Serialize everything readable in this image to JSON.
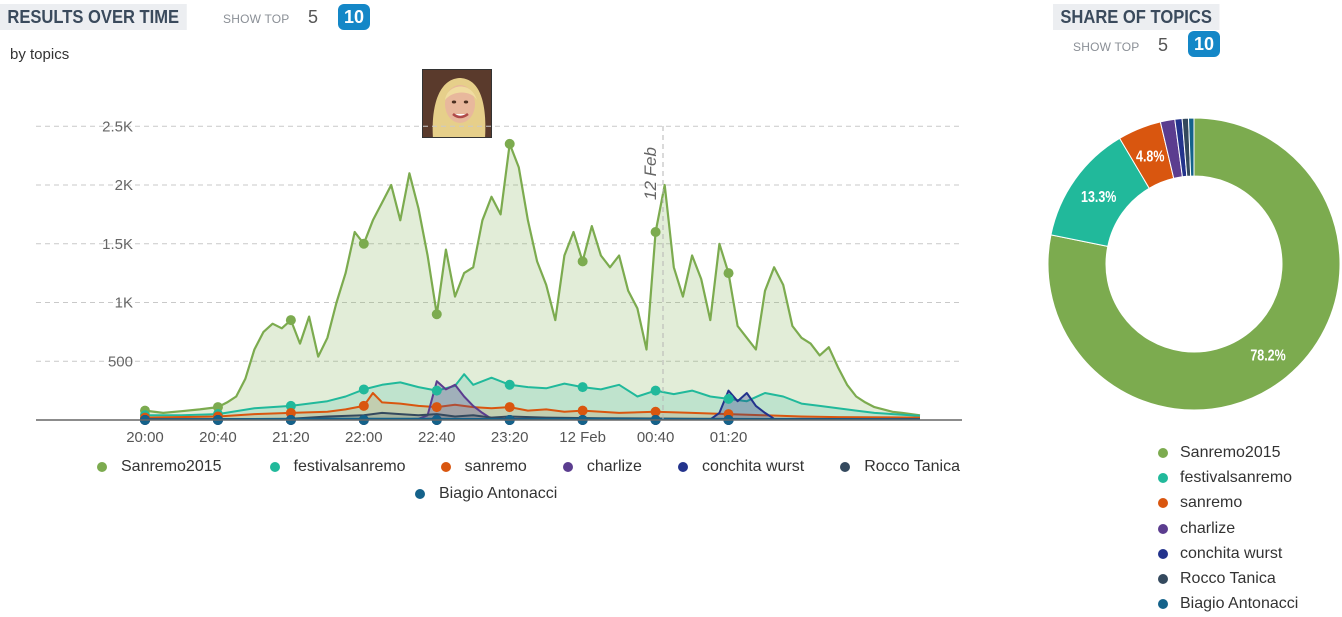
{
  "results": {
    "title": "RESULTS OVER TIME",
    "show_top_label": "SHOW TOP",
    "options": [
      "5",
      "10"
    ],
    "active_option": "10",
    "subtitle": "by topics",
    "event_label": "12 Feb"
  },
  "share": {
    "title": "SHARE OF TOPICS",
    "show_top_label": "SHOW TOP",
    "options": [
      "5",
      "10"
    ],
    "active_option": "10"
  },
  "chart_data": [
    {
      "type": "area",
      "title": "RESULTS OVER TIME",
      "subtitle": "by topics",
      "x_tick_labels": [
        "20:00",
        "20:40",
        "21:20",
        "22:00",
        "22:40",
        "23:20",
        "12 Feb",
        "00:40",
        "01:20"
      ],
      "y_tick_labels": [
        "500",
        "1K",
        "1.5K",
        "2K",
        "2.5K"
      ],
      "ylim": [
        0,
        2500
      ],
      "grid": true,
      "legend_position": "bottom",
      "series": [
        {
          "name": "Sanremo2015",
          "color": "#7cab4f",
          "points": [
            [
              0,
              80
            ],
            [
              10,
              60
            ],
            [
              20,
              75
            ],
            [
              30,
              90
            ],
            [
              40,
              110
            ],
            [
              45,
              150
            ],
            [
              50,
              200
            ],
            [
              55,
              350
            ],
            [
              60,
              600
            ],
            [
              65,
              750
            ],
            [
              70,
              820
            ],
            [
              75,
              780
            ],
            [
              80,
              850
            ],
            [
              85,
              650
            ],
            [
              90,
              880
            ],
            [
              95,
              540
            ],
            [
              100,
              700
            ],
            [
              105,
              1000
            ],
            [
              110,
              1250
            ],
            [
              115,
              1600
            ],
            [
              120,
              1500
            ],
            [
              125,
              1700
            ],
            [
              130,
              1850
            ],
            [
              135,
              2000
            ],
            [
              140,
              1700
            ],
            [
              145,
              2100
            ],
            [
              150,
              1800
            ],
            [
              155,
              1400
            ],
            [
              160,
              900
            ],
            [
              165,
              1450
            ],
            [
              170,
              1050
            ],
            [
              175,
              1250
            ],
            [
              180,
              1300
            ],
            [
              185,
              1700
            ],
            [
              190,
              1900
            ],
            [
              195,
              1750
            ],
            [
              200,
              2350
            ],
            [
              205,
              2150
            ],
            [
              210,
              1700
            ],
            [
              215,
              1350
            ],
            [
              220,
              1150
            ],
            [
              225,
              850
            ],
            [
              230,
              1400
            ],
            [
              235,
              1600
            ],
            [
              240,
              1350
            ],
            [
              245,
              1650
            ],
            [
              250,
              1400
            ],
            [
              255,
              1300
            ],
            [
              260,
              1400
            ],
            [
              265,
              1100
            ],
            [
              270,
              950
            ],
            [
              275,
              600
            ],
            [
              280,
              1600
            ],
            [
              285,
              2000
            ],
            [
              290,
              1300
            ],
            [
              295,
              1050
            ],
            [
              300,
              1400
            ],
            [
              305,
              1200
            ],
            [
              310,
              850
            ],
            [
              315,
              1500
            ],
            [
              320,
              1250
            ],
            [
              325,
              800
            ],
            [
              330,
              700
            ],
            [
              335,
              600
            ],
            [
              340,
              1100
            ],
            [
              345,
              1300
            ],
            [
              350,
              1150
            ],
            [
              355,
              800
            ],
            [
              360,
              700
            ],
            [
              365,
              650
            ],
            [
              370,
              550
            ],
            [
              375,
              620
            ],
            [
              380,
              450
            ],
            [
              385,
              300
            ],
            [
              390,
              200
            ],
            [
              395,
              150
            ],
            [
              400,
              110
            ],
            [
              405,
              90
            ],
            [
              410,
              70
            ],
            [
              415,
              60
            ],
            [
              420,
              50
            ],
            [
              425,
              40
            ]
          ]
        },
        {
          "name": "festivalsanremo",
          "color": "#21b99b",
          "points": [
            [
              0,
              40
            ],
            [
              20,
              40
            ],
            [
              40,
              50
            ],
            [
              60,
              100
            ],
            [
              80,
              120
            ],
            [
              100,
              160
            ],
            [
              110,
              200
            ],
            [
              120,
              260
            ],
            [
              130,
              300
            ],
            [
              140,
              320
            ],
            [
              150,
              280
            ],
            [
              160,
              250
            ],
            [
              170,
              290
            ],
            [
              175,
              390
            ],
            [
              180,
              300
            ],
            [
              190,
              360
            ],
            [
              200,
              300
            ],
            [
              210,
              280
            ],
            [
              220,
              270
            ],
            [
              230,
              310
            ],
            [
              240,
              280
            ],
            [
              250,
              260
            ],
            [
              260,
              300
            ],
            [
              270,
              200
            ],
            [
              280,
              250
            ],
            [
              290,
              220
            ],
            [
              300,
              250
            ],
            [
              310,
              200
            ],
            [
              320,
              180
            ],
            [
              330,
              160
            ],
            [
              340,
              230
            ],
            [
              350,
              200
            ],
            [
              360,
              140
            ],
            [
              370,
              120
            ],
            [
              380,
              100
            ],
            [
              390,
              80
            ],
            [
              400,
              60
            ],
            [
              420,
              40
            ],
            [
              425,
              35
            ]
          ]
        },
        {
          "name": "sanremo",
          "color": "#d9560f",
          "points": [
            [
              0,
              20
            ],
            [
              40,
              30
            ],
            [
              60,
              50
            ],
            [
              80,
              60
            ],
            [
              100,
              70
            ],
            [
              110,
              90
            ],
            [
              120,
              120
            ],
            [
              125,
              230
            ],
            [
              130,
              150
            ],
            [
              140,
              140
            ],
            [
              150,
              120
            ],
            [
              160,
              110
            ],
            [
              170,
              130
            ],
            [
              180,
              110
            ],
            [
              190,
              100
            ],
            [
              200,
              110
            ],
            [
              210,
              80
            ],
            [
              220,
              90
            ],
            [
              230,
              70
            ],
            [
              240,
              80
            ],
            [
              260,
              60
            ],
            [
              280,
              70
            ],
            [
              300,
              60
            ],
            [
              320,
              50
            ],
            [
              340,
              40
            ],
            [
              360,
              30
            ],
            [
              380,
              25
            ],
            [
              425,
              20
            ]
          ]
        },
        {
          "name": "charlize",
          "color": "#5b3d8f",
          "points": [
            [
              0,
              5
            ],
            [
              140,
              5
            ],
            [
              150,
              10
            ],
            [
              155,
              40
            ],
            [
              160,
              330
            ],
            [
              165,
              260
            ],
            [
              170,
              300
            ],
            [
              175,
              200
            ],
            [
              180,
              120
            ],
            [
              185,
              60
            ],
            [
              190,
              10
            ],
            [
              425,
              5
            ]
          ]
        },
        {
          "name": "conchita wurst",
          "color": "#23338c",
          "points": [
            [
              0,
              5
            ],
            [
              310,
              5
            ],
            [
              315,
              60
            ],
            [
              320,
              250
            ],
            [
              325,
              160
            ],
            [
              330,
              230
            ],
            [
              335,
              120
            ],
            [
              340,
              60
            ],
            [
              345,
              10
            ],
            [
              425,
              5
            ]
          ]
        },
        {
          "name": "Rocco Tanica",
          "color": "#34495e",
          "points": [
            [
              0,
              5
            ],
            [
              80,
              10
            ],
            [
              100,
              30
            ],
            [
              120,
              40
            ],
            [
              130,
              60
            ],
            [
              140,
              50
            ],
            [
              150,
              40
            ],
            [
              160,
              50
            ],
            [
              170,
              30
            ],
            [
              180,
              40
            ],
            [
              190,
              20
            ],
            [
              200,
              30
            ],
            [
              220,
              20
            ],
            [
              250,
              15
            ],
            [
              300,
              10
            ],
            [
              425,
              5
            ]
          ]
        },
        {
          "name": "Biagio Antonacci",
          "color": "#14628a",
          "points": [
            [
              0,
              5
            ],
            [
              60,
              8
            ],
            [
              100,
              12
            ],
            [
              150,
              10
            ],
            [
              200,
              8
            ],
            [
              250,
              10
            ],
            [
              300,
              8
            ],
            [
              425,
              5
            ]
          ]
        }
      ]
    },
    {
      "type": "pie",
      "title": "SHARE OF TOPICS",
      "legend_position": "bottom",
      "slices": [
        {
          "name": "Sanremo2015",
          "value": 78.2,
          "label": "78.2%",
          "color": "#7cab4f"
        },
        {
          "name": "festivalsanremo",
          "value": 13.3,
          "label": "13.3%",
          "color": "#21b99b"
        },
        {
          "name": "sanremo",
          "value": 4.8,
          "label": "4.8%",
          "color": "#d9560f"
        },
        {
          "name": "charlize",
          "value": 1.6,
          "label": "",
          "color": "#5b3d8f"
        },
        {
          "name": "conchita wurst",
          "value": 0.8,
          "label": "",
          "color": "#23338c"
        },
        {
          "name": "Rocco Tanica",
          "value": 0.7,
          "label": "",
          "color": "#34495e"
        },
        {
          "name": "Biagio Antonacci",
          "value": 0.6,
          "label": "",
          "color": "#14628a"
        }
      ]
    }
  ]
}
